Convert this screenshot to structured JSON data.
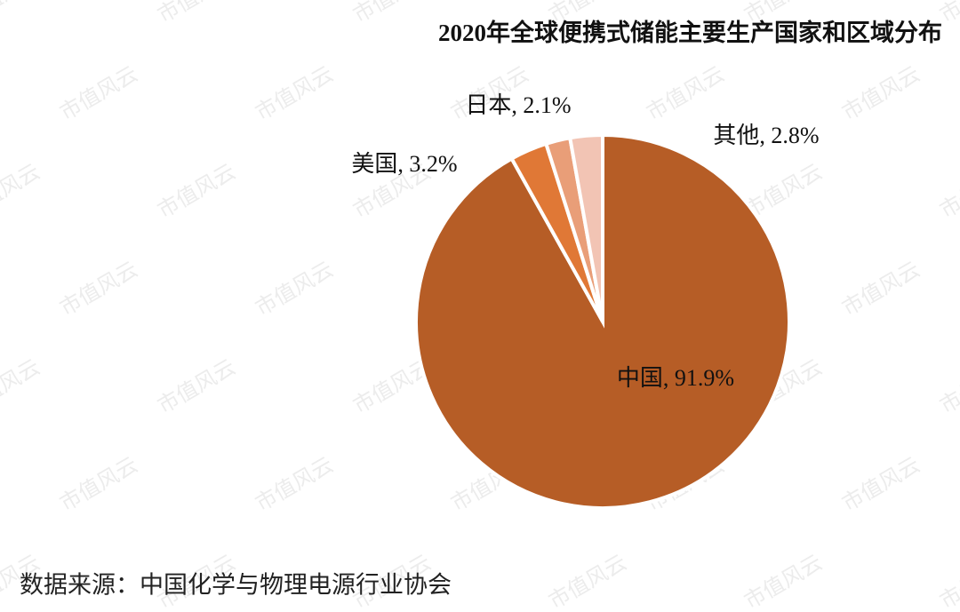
{
  "chart_data": {
    "type": "pie",
    "title": "2020年全球便携式储能主要生产国家和区域分布",
    "categories": [
      "中国",
      "美国",
      "日本",
      "其他"
    ],
    "values": [
      91.9,
      3.2,
      2.1,
      2.8
    ],
    "value_labels": [
      "中国, 91.9%",
      "美国, 3.2%",
      "日本, 2.1%",
      "其他, 2.8%"
    ],
    "colors": [
      "#b65d26",
      "#e07836",
      "#e99e78",
      "#f2c4b4"
    ]
  },
  "source": "数据来源：中国化学与物理电源行业协会",
  "watermark": "市值风云"
}
